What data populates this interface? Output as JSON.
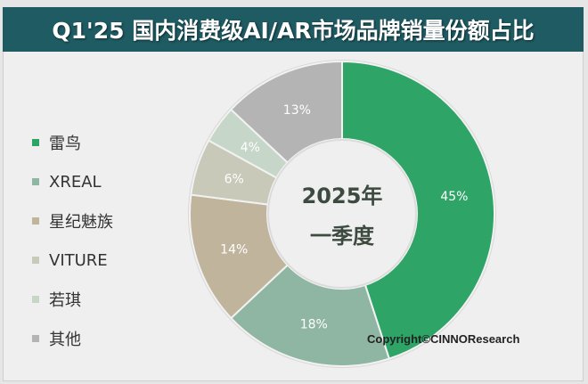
{
  "title": "Q1'25 国内消费级AI/AR市场品牌销量份额占比",
  "copyright": "Copyright©CINNOResearch",
  "chart_data": {
    "type": "pie",
    "donut": true,
    "title": "Q1'25 国内消费级AI/AR市场品牌销量份额占比",
    "center_label": [
      "2025年",
      "一季度"
    ],
    "legend_position": "left",
    "categories": [
      "雷鸟",
      "XREAL",
      "星纪魅族",
      "VITURE",
      "若琪",
      "其他"
    ],
    "values": [
      45,
      18,
      14,
      6,
      4,
      13
    ],
    "data_labels": [
      "45%",
      "18%",
      "14%",
      "6%",
      "4%",
      "13%"
    ],
    "colors": [
      "#2ea567",
      "#8fb5a3",
      "#c0b59c",
      "#c8c9b8",
      "#c6d7c9",
      "#b4b4b4"
    ],
    "title_bar_color": "#1f5b63"
  }
}
